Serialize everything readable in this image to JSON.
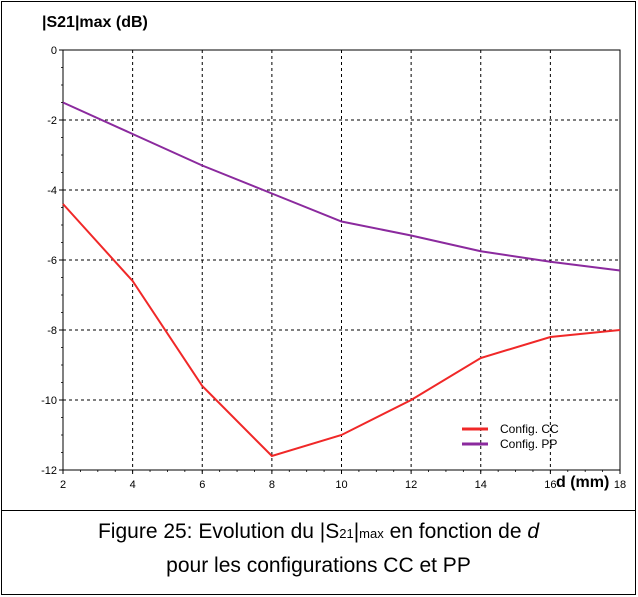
{
  "chart_data": {
    "type": "line",
    "ylabel": "|S21|max (dB)",
    "xlabel": "d (mm)",
    "xlim": [
      2,
      18
    ],
    "ylim": [
      -12,
      0
    ],
    "x_ticks": [
      "2",
      "4",
      "6",
      "8",
      "10",
      "12",
      "14",
      "16",
      "18"
    ],
    "y_ticks": [
      "0",
      "-2",
      "-4",
      "-6",
      "-8",
      "-10",
      "-12"
    ],
    "grid": true,
    "legend_position": "bottom-right",
    "series": [
      {
        "name": "Config. CC",
        "color": "#f02828",
        "x": [
          2,
          4,
          6,
          8,
          10,
          12,
          14,
          16,
          18
        ],
        "y": [
          -4.4,
          -6.6,
          -9.6,
          -11.6,
          -11.0,
          -10.0,
          -8.8,
          -8.2,
          -8.0
        ]
      },
      {
        "name": "Config. PP",
        "color": "#8b2a9e",
        "x": [
          2,
          4,
          6,
          8,
          10,
          12,
          14,
          16,
          18
        ],
        "y": [
          -1.5,
          -2.4,
          -3.3,
          -4.1,
          -4.9,
          -5.3,
          -5.75,
          -6.05,
          -6.3
        ]
      }
    ]
  },
  "caption": {
    "prefix": "Figure 25: Evolution du |S",
    "sub1": "21",
    "mid": "|",
    "sub2": "max",
    "after": " en fonction de ",
    "var": "d",
    "line2": "pour les configurations CC et PP"
  }
}
